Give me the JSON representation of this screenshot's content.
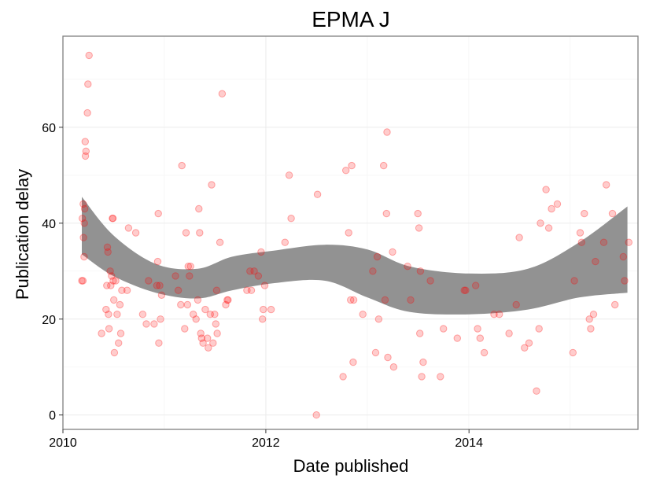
{
  "chart_data": {
    "type": "scatter",
    "title": "EPMA J",
    "xlabel": "Date published",
    "ylabel": "Publication delay",
    "x_scale": "date",
    "xlim": [
      "2010-01-01",
      "2015-09-01"
    ],
    "ylim": [
      -3,
      79
    ],
    "x_ticks": [
      {
        "date": "2010-01-01",
        "label": "2010"
      },
      {
        "date": "2012-01-01",
        "label": "2012"
      },
      {
        "date": "2014-01-01",
        "label": "2014"
      }
    ],
    "y_ticks": [
      {
        "value": 0,
        "label": "0"
      },
      {
        "value": 20,
        "label": "20"
      },
      {
        "value": 40,
        "label": "40"
      },
      {
        "value": 60,
        "label": "60"
      }
    ],
    "grid": true,
    "legend": "none",
    "point_color": "#ff0000",
    "band_color": "#8c8c8c",
    "points": [
      [
        "2010-03-10",
        28
      ],
      [
        "2010-03-12",
        41
      ],
      [
        "2010-03-14",
        28
      ],
      [
        "2010-03-15",
        44
      ],
      [
        "2010-03-16",
        37
      ],
      [
        "2010-03-18",
        33
      ],
      [
        "2010-03-19",
        40
      ],
      [
        "2010-03-20",
        43
      ],
      [
        "2010-03-22",
        57
      ],
      [
        "2010-03-23",
        54
      ],
      [
        "2010-03-25",
        55
      ],
      [
        "2010-03-30",
        63
      ],
      [
        "2010-04-01",
        69
      ],
      [
        "2010-04-05",
        75
      ],
      [
        "2010-05-20",
        17
      ],
      [
        "2010-06-05",
        22
      ],
      [
        "2010-06-08",
        27
      ],
      [
        "2010-06-10",
        35
      ],
      [
        "2010-06-12",
        34
      ],
      [
        "2010-06-14",
        21
      ],
      [
        "2010-06-16",
        18
      ],
      [
        "2010-06-20",
        30
      ],
      [
        "2010-06-22",
        27
      ],
      [
        "2010-06-25",
        29
      ],
      [
        "2010-06-28",
        41
      ],
      [
        "2010-06-30",
        41
      ],
      [
        "2010-07-01",
        28
      ],
      [
        "2010-07-03",
        24
      ],
      [
        "2010-07-05",
        13
      ],
      [
        "2010-07-10",
        28
      ],
      [
        "2010-07-15",
        21
      ],
      [
        "2010-07-20",
        15
      ],
      [
        "2010-07-25",
        23
      ],
      [
        "2010-07-28",
        17
      ],
      [
        "2010-08-01",
        26
      ],
      [
        "2010-08-20",
        26
      ],
      [
        "2010-08-25",
        39
      ],
      [
        "2010-09-20",
        38
      ],
      [
        "2010-10-15",
        21
      ],
      [
        "2010-10-28",
        19
      ],
      [
        "2010-11-05",
        28
      ],
      [
        "2010-11-25",
        19
      ],
      [
        "2010-12-05",
        27
      ],
      [
        "2010-12-08",
        32
      ],
      [
        "2010-12-10",
        42
      ],
      [
        "2010-12-12",
        15
      ],
      [
        "2010-12-15",
        27
      ],
      [
        "2010-12-18",
        20
      ],
      [
        "2010-12-22",
        25
      ],
      [
        "2011-02-10",
        29
      ],
      [
        "2011-02-20",
        26
      ],
      [
        "2011-03-01",
        23
      ],
      [
        "2011-03-05",
        52
      ],
      [
        "2011-03-15",
        18
      ],
      [
        "2011-03-20",
        38
      ],
      [
        "2011-03-25",
        23
      ],
      [
        "2011-03-28",
        31
      ],
      [
        "2011-04-01",
        29
      ],
      [
        "2011-04-05",
        31
      ],
      [
        "2011-04-15",
        21
      ],
      [
        "2011-04-25",
        20
      ],
      [
        "2011-05-01",
        24
      ],
      [
        "2011-05-05",
        43
      ],
      [
        "2011-05-08",
        38
      ],
      [
        "2011-05-12",
        17
      ],
      [
        "2011-05-15",
        16
      ],
      [
        "2011-05-20",
        15
      ],
      [
        "2011-05-28",
        22
      ],
      [
        "2011-06-05",
        16
      ],
      [
        "2011-06-08",
        14
      ],
      [
        "2011-06-15",
        21
      ],
      [
        "2011-06-20",
        48
      ],
      [
        "2011-06-25",
        15
      ],
      [
        "2011-07-01",
        21
      ],
      [
        "2011-07-05",
        19
      ],
      [
        "2011-07-08",
        26
      ],
      [
        "2011-07-10",
        17
      ],
      [
        "2011-07-20",
        36
      ],
      [
        "2011-07-28",
        67
      ],
      [
        "2011-08-10",
        23
      ],
      [
        "2011-08-15",
        24
      ],
      [
        "2011-08-18",
        24
      ],
      [
        "2011-10-25",
        26
      ],
      [
        "2011-11-05",
        30
      ],
      [
        "2011-11-10",
        26
      ],
      [
        "2011-11-20",
        30
      ],
      [
        "2011-12-05",
        29
      ],
      [
        "2011-12-15",
        34
      ],
      [
        "2011-12-20",
        20
      ],
      [
        "2011-12-23",
        22
      ],
      [
        "2011-12-28",
        27
      ],
      [
        "2012-01-20",
        22
      ],
      [
        "2012-03-10",
        36
      ],
      [
        "2012-03-25",
        50
      ],
      [
        "2012-04-01",
        41
      ],
      [
        "2012-07-01",
        0
      ],
      [
        "2012-07-05",
        46
      ],
      [
        "2012-10-05",
        8
      ],
      [
        "2012-10-15",
        51
      ],
      [
        "2012-10-25",
        38
      ],
      [
        "2012-11-01",
        24
      ],
      [
        "2012-11-05",
        52
      ],
      [
        "2012-11-10",
        11
      ],
      [
        "2012-11-12",
        24
      ],
      [
        "2012-12-15",
        21
      ],
      [
        "2013-01-20",
        30
      ],
      [
        "2013-01-30",
        13
      ],
      [
        "2013-02-05",
        33
      ],
      [
        "2013-02-10",
        20
      ],
      [
        "2013-02-28",
        52
      ],
      [
        "2013-03-05",
        24
      ],
      [
        "2013-03-10",
        42
      ],
      [
        "2013-03-12",
        59
      ],
      [
        "2013-03-15",
        12
      ],
      [
        "2013-04-01",
        34
      ],
      [
        "2013-04-05",
        10
      ],
      [
        "2013-05-25",
        31
      ],
      [
        "2013-06-05",
        24
      ],
      [
        "2013-07-01",
        42
      ],
      [
        "2013-07-05",
        39
      ],
      [
        "2013-07-08",
        17
      ],
      [
        "2013-07-10",
        30
      ],
      [
        "2013-07-15",
        8
      ],
      [
        "2013-07-20",
        11
      ],
      [
        "2013-08-15",
        28
      ],
      [
        "2013-09-20",
        8
      ],
      [
        "2013-10-01",
        18
      ],
      [
        "2013-11-20",
        16
      ],
      [
        "2013-12-15",
        26
      ],
      [
        "2013-12-20",
        26
      ],
      [
        "2014-01-25",
        27
      ],
      [
        "2014-02-01",
        18
      ],
      [
        "2014-02-10",
        16
      ],
      [
        "2014-02-25",
        13
      ],
      [
        "2014-04-01",
        21
      ],
      [
        "2014-04-20",
        21
      ],
      [
        "2014-05-25",
        17
      ],
      [
        "2014-06-20",
        23
      ],
      [
        "2014-07-01",
        37
      ],
      [
        "2014-07-20",
        14
      ],
      [
        "2014-08-05",
        15
      ],
      [
        "2014-09-01",
        5
      ],
      [
        "2014-09-10",
        18
      ],
      [
        "2014-09-15",
        40
      ],
      [
        "2014-10-05",
        47
      ],
      [
        "2014-10-15",
        39
      ],
      [
        "2014-10-25",
        43
      ],
      [
        "2014-11-15",
        44
      ],
      [
        "2015-01-10",
        13
      ],
      [
        "2015-01-15",
        28
      ],
      [
        "2015-02-05",
        38
      ],
      [
        "2015-02-10",
        36
      ],
      [
        "2015-02-20",
        42
      ],
      [
        "2015-03-10",
        20
      ],
      [
        "2015-03-15",
        18
      ],
      [
        "2015-03-25",
        21
      ],
      [
        "2015-04-01",
        32
      ],
      [
        "2015-05-01",
        36
      ],
      [
        "2015-05-10",
        48
      ],
      [
        "2015-06-01",
        42
      ],
      [
        "2015-06-10",
        23
      ],
      [
        "2015-07-10",
        33
      ],
      [
        "2015-07-15",
        28
      ],
      [
        "2015-07-30",
        36
      ]
    ],
    "smooth_band": [
      {
        "x": "2010-03-10",
        "lower": 33.5,
        "upper": 45.5
      },
      {
        "x": "2010-07-01",
        "lower": 29.0,
        "upper": 37.5
      },
      {
        "x": "2010-12-01",
        "lower": 25.5,
        "upper": 31.5
      },
      {
        "x": "2011-05-01",
        "lower": 24.3,
        "upper": 30.5
      },
      {
        "x": "2011-09-01",
        "lower": 26.0,
        "upper": 33.0
      },
      {
        "x": "2012-02-01",
        "lower": 27.5,
        "upper": 34.3
      },
      {
        "x": "2012-08-01",
        "lower": 28.0,
        "upper": 35.5
      },
      {
        "x": "2013-01-01",
        "lower": 24.5,
        "upper": 34.5
      },
      {
        "x": "2013-06-01",
        "lower": 21.5,
        "upper": 31.0
      },
      {
        "x": "2014-01-01",
        "lower": 21.0,
        "upper": 29.5
      },
      {
        "x": "2014-08-01",
        "lower": 22.0,
        "upper": 30.5
      },
      {
        "x": "2015-02-01",
        "lower": 24.5,
        "upper": 36.0
      },
      {
        "x": "2015-07-25",
        "lower": 25.5,
        "upper": 43.5
      }
    ]
  }
}
